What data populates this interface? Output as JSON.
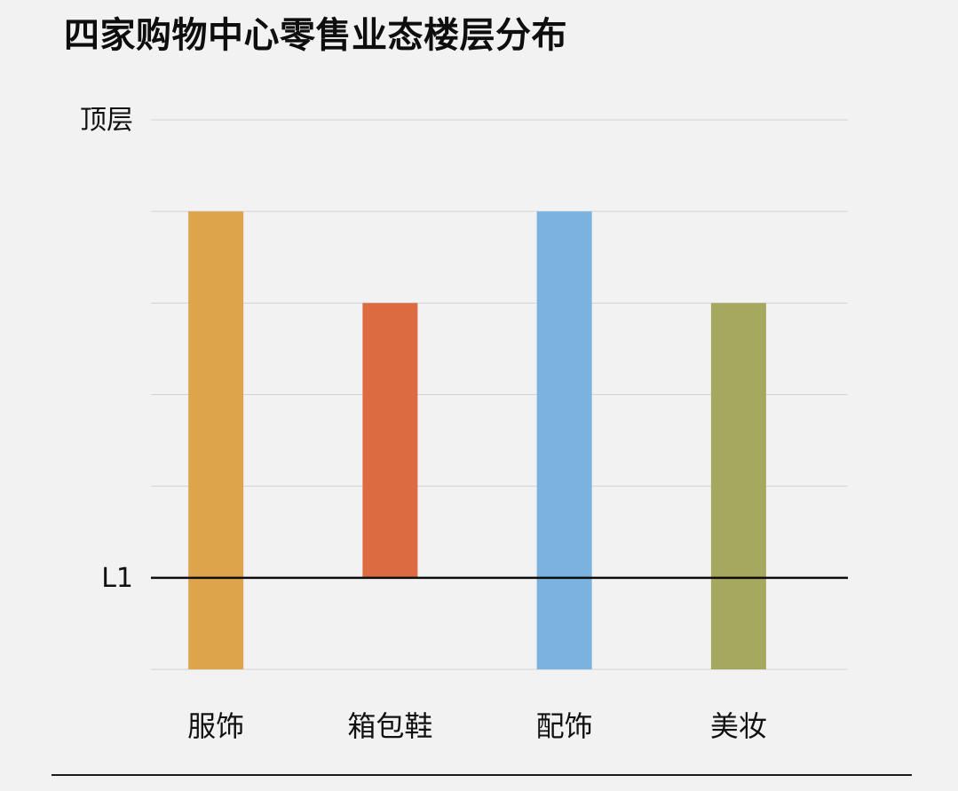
{
  "chart_data": {
    "type": "bar",
    "title": "四家购物中心零售业态楼层分布",
    "xlabel": "",
    "ylabel": "",
    "y_axis_labels": [
      "顶层",
      "L1"
    ],
    "categories": [
      "服饰",
      "箱包鞋",
      "配饰",
      "美妆"
    ],
    "series": [
      {
        "low": [
          -1,
          0,
          -1,
          -1
        ],
        "high": [
          4,
          3,
          4,
          3
        ]
      }
    ],
    "colors": [
      "#dda44c",
      "#dd6b42",
      "#7ab3e0",
      "#a5a85e"
    ],
    "ylim": [
      -1,
      5
    ],
    "baseline": 0,
    "grid": true,
    "legend": "none"
  }
}
